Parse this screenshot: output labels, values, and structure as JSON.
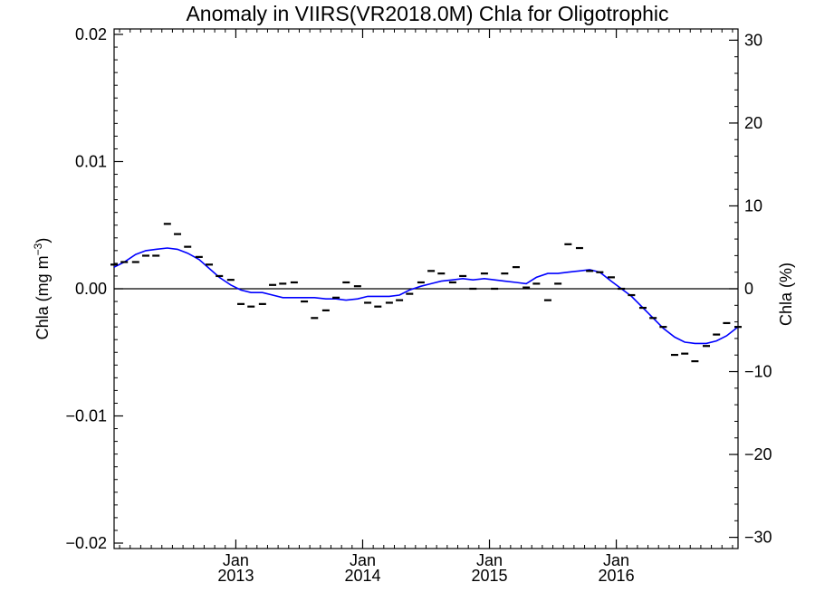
{
  "chart_data": {
    "type": "line",
    "title": "Anomaly in VIIRS(VR2018.0M) Chla for Oligotrophic",
    "ylabel_left": "Chla (mg m",
    "ylabel_left_sup": "−3",
    "ylabel_left_close": ")",
    "ylabel_right": "Chla (%)",
    "xlim": [
      2012.04,
      2016.96
    ],
    "ylim": [
      -0.02,
      0.02
    ],
    "ylim_right": [
      -30.7,
      30.7
    ],
    "grid": false,
    "zero_line": true,
    "x_ticks": [
      {
        "value": 2013.0,
        "label_month": "Jan",
        "label_year": "2013"
      },
      {
        "value": 2014.0,
        "label_month": "Jan",
        "label_year": "2014"
      },
      {
        "value": 2015.0,
        "label_month": "Jan",
        "label_year": "2015"
      },
      {
        "value": 2016.0,
        "label_month": "Jan",
        "label_year": "2016"
      }
    ],
    "y_ticks_left": [
      {
        "value": 0.02,
        "label": "0.02"
      },
      {
        "value": 0.01,
        "label": "0.01"
      },
      {
        "value": 0.0,
        "label": "0.00"
      },
      {
        "value": -0.01,
        "label": "−0.01"
      },
      {
        "value": -0.02,
        "label": "−0.02"
      }
    ],
    "y_ticks_right": [
      {
        "value": 30,
        "label": "30"
      },
      {
        "value": 20,
        "label": "20"
      },
      {
        "value": 10,
        "label": "10"
      },
      {
        "value": 0,
        "label": "0"
      },
      {
        "value": -10,
        "label": "−10"
      },
      {
        "value": -20,
        "label": "−20"
      },
      {
        "value": -30,
        "label": "−30"
      }
    ],
    "series": [
      {
        "kind": "markers",
        "color": "#000000",
        "points": [
          [
            2012.04,
            0.0019
          ],
          [
            2012.12,
            0.0021
          ],
          [
            2012.21,
            0.0021
          ],
          [
            2012.29,
            0.0026
          ],
          [
            2012.37,
            0.0026
          ],
          [
            2012.46,
            0.0051
          ],
          [
            2012.54,
            0.0043
          ],
          [
            2012.62,
            0.0033
          ],
          [
            2012.71,
            0.0025
          ],
          [
            2012.79,
            0.0019
          ],
          [
            2012.87,
            0.001
          ],
          [
            2012.96,
            0.0007
          ],
          [
            2013.04,
            -0.0012
          ],
          [
            2013.12,
            -0.0014
          ],
          [
            2013.21,
            -0.0012
          ],
          [
            2013.29,
            0.0003
          ],
          [
            2013.37,
            0.0004
          ],
          [
            2013.46,
            0.0005
          ],
          [
            2013.54,
            -0.001
          ],
          [
            2013.62,
            -0.0023
          ],
          [
            2013.71,
            -0.0017
          ],
          [
            2013.79,
            -0.0007
          ],
          [
            2013.87,
            0.0005
          ],
          [
            2013.96,
            0.0002
          ],
          [
            2014.04,
            -0.0011
          ],
          [
            2014.12,
            -0.0014
          ],
          [
            2014.21,
            -0.0011
          ],
          [
            2014.29,
            -0.0009
          ],
          [
            2014.37,
            -0.0004
          ],
          [
            2014.46,
            0.0005
          ],
          [
            2014.54,
            0.0014
          ],
          [
            2014.62,
            0.0012
          ],
          [
            2014.71,
            0.0005
          ],
          [
            2014.79,
            0.001
          ],
          [
            2014.87,
            0.0
          ],
          [
            2014.96,
            0.0012
          ],
          [
            2015.04,
            0.0
          ],
          [
            2015.12,
            0.0012
          ],
          [
            2015.21,
            0.0017
          ],
          [
            2015.29,
            0.0001
          ],
          [
            2015.37,
            0.0004
          ],
          [
            2015.46,
            -0.0009
          ],
          [
            2015.54,
            0.0004
          ],
          [
            2015.62,
            0.0035
          ],
          [
            2015.71,
            0.0032
          ],
          [
            2015.79,
            0.0014
          ],
          [
            2015.87,
            0.0013
          ],
          [
            2015.96,
            0.0009
          ],
          [
            2016.04,
            0.0
          ],
          [
            2016.12,
            -0.0005
          ],
          [
            2016.21,
            -0.0015
          ],
          [
            2016.29,
            -0.0023
          ],
          [
            2016.37,
            -0.003
          ],
          [
            2016.46,
            -0.0052
          ],
          [
            2016.54,
            -0.0051
          ],
          [
            2016.62,
            -0.0057
          ],
          [
            2016.71,
            -0.0045
          ],
          [
            2016.79,
            -0.0036
          ],
          [
            2016.87,
            -0.0027
          ],
          [
            2016.96,
            -0.003
          ]
        ]
      },
      {
        "kind": "line",
        "color": "#0000ff",
        "points": [
          [
            2012.04,
            0.0017
          ],
          [
            2012.12,
            0.0021
          ],
          [
            2012.21,
            0.0027
          ],
          [
            2012.29,
            0.003
          ],
          [
            2012.37,
            0.0031
          ],
          [
            2012.46,
            0.0032
          ],
          [
            2012.54,
            0.0031
          ],
          [
            2012.62,
            0.0028
          ],
          [
            2012.71,
            0.0023
          ],
          [
            2012.79,
            0.0016
          ],
          [
            2012.87,
            0.0009
          ],
          [
            2012.96,
            0.0003
          ],
          [
            2013.04,
            -0.0001
          ],
          [
            2013.12,
            -0.0003
          ],
          [
            2013.21,
            -0.0003
          ],
          [
            2013.29,
            -0.0005
          ],
          [
            2013.37,
            -0.0007
          ],
          [
            2013.46,
            -0.0007
          ],
          [
            2013.54,
            -0.0007
          ],
          [
            2013.62,
            -0.0007
          ],
          [
            2013.71,
            -0.0008
          ],
          [
            2013.79,
            -0.0008
          ],
          [
            2013.87,
            -0.0009
          ],
          [
            2013.96,
            -0.0008
          ],
          [
            2014.04,
            -0.0006
          ],
          [
            2014.12,
            -0.0006
          ],
          [
            2014.21,
            -0.0006
          ],
          [
            2014.29,
            -0.0005
          ],
          [
            2014.37,
            -0.0001
          ],
          [
            2014.46,
            0.0002
          ],
          [
            2014.54,
            0.0004
          ],
          [
            2014.62,
            0.0006
          ],
          [
            2014.71,
            0.0007
          ],
          [
            2014.79,
            0.0008
          ],
          [
            2014.87,
            0.0007
          ],
          [
            2014.96,
            0.0008
          ],
          [
            2015.04,
            0.0007
          ],
          [
            2015.12,
            0.0006
          ],
          [
            2015.21,
            0.0005
          ],
          [
            2015.29,
            0.0004
          ],
          [
            2015.37,
            0.0009
          ],
          [
            2015.46,
            0.0012
          ],
          [
            2015.54,
            0.0012
          ],
          [
            2015.62,
            0.0013
          ],
          [
            2015.71,
            0.0014
          ],
          [
            2015.79,
            0.0015
          ],
          [
            2015.87,
            0.0013
          ],
          [
            2015.96,
            0.0006
          ],
          [
            2016.04,
            0.0
          ],
          [
            2016.12,
            -0.0006
          ],
          [
            2016.21,
            -0.0015
          ],
          [
            2016.29,
            -0.0023
          ],
          [
            2016.37,
            -0.0031
          ],
          [
            2016.46,
            -0.0038
          ],
          [
            2016.54,
            -0.0042
          ],
          [
            2016.62,
            -0.0043
          ],
          [
            2016.71,
            -0.0043
          ],
          [
            2016.79,
            -0.0041
          ],
          [
            2016.87,
            -0.0037
          ],
          [
            2016.96,
            -0.003
          ]
        ]
      }
    ]
  }
}
